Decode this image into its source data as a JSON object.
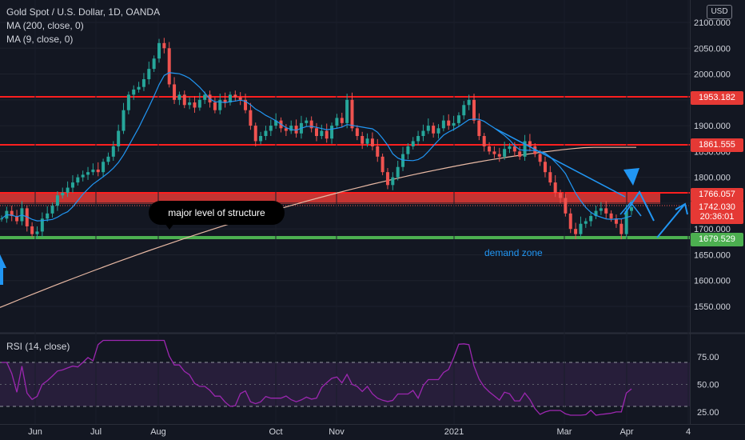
{
  "legend": {
    "title": "Gold Spot / U.S. Dollar, 1D, OANDA",
    "ma200": "MA (200, close, 0)",
    "ma9": "MA (9, close, 0)"
  },
  "currency_button": "USD",
  "price_tags": [
    {
      "label": "1953.182",
      "value": 1953.182,
      "color": "#e53935"
    },
    {
      "label": "1861.555",
      "value": 1861.555,
      "color": "#e53935"
    },
    {
      "label": "1766.057",
      "value": 1766.057,
      "color": "#e53935"
    },
    {
      "label": "1742.030",
      "value": 1742.03,
      "color": "#e53935"
    },
    {
      "label": "20:36:01",
      "value": 1722.0,
      "color": "#e53935"
    },
    {
      "label": "1679.529",
      "value": 1679.529,
      "color": "#4caf50"
    }
  ],
  "annotations": {
    "callout": "major level of structure",
    "zone_label": "demand zone"
  },
  "rsi_title": "RSI (14, close)",
  "colors": {
    "background": "#131722",
    "up_candle": "#26a69a",
    "down_candle": "#ef5350",
    "resistance": "#ff1f1f",
    "support": "#4caf50",
    "ma9": "#2196f3",
    "ma200": "#e8b9a4",
    "rsi": "#9c27b0",
    "rsi_band": "#2a1f3d"
  },
  "chart_data": [
    {
      "type": "candlestick",
      "title": "Gold Spot / U.S. Dollar, 1D, OANDA",
      "x_ticks": [
        "Jun",
        "Jul",
        "Aug",
        "Oct",
        "Nov",
        "2021",
        "Mar",
        "Apr",
        "4"
      ],
      "y_ticks": [
        1550,
        1600,
        1650,
        1700,
        1750,
        1800,
        1850,
        1900,
        1950,
        2000,
        2050,
        2100
      ],
      "y_tick_labels": [
        "1550.000",
        "1600.000",
        "1650.000",
        "1700.000",
        "1750.000",
        "1800.000",
        "1850.000",
        "1900.000",
        "1950.000",
        "2000.000",
        "2050.000",
        "2100.000"
      ],
      "ylim": [
        1510,
        2110
      ],
      "approx_close": [
        1720,
        1735,
        1725,
        1715,
        1740,
        1705,
        1690,
        1695,
        1720,
        1730,
        1745,
        1765,
        1770,
        1780,
        1790,
        1800,
        1805,
        1810,
        1815,
        1810,
        1830,
        1840,
        1860,
        1890,
        1930,
        1960,
        1970,
        1975,
        1990,
        2010,
        2030,
        2060,
        2050,
        1980,
        1950,
        1960,
        1940,
        1945,
        1935,
        1950,
        1960,
        1945,
        1930,
        1950,
        1945,
        1960,
        1955,
        1950,
        1930,
        1900,
        1870,
        1880,
        1890,
        1900,
        1910,
        1895,
        1890,
        1900,
        1885,
        1905,
        1910,
        1895,
        1880,
        1890,
        1875,
        1900,
        1915,
        1905,
        1950,
        1895,
        1880,
        1865,
        1875,
        1860,
        1840,
        1810,
        1785,
        1800,
        1820,
        1845,
        1860,
        1870,
        1880,
        1890,
        1900,
        1885,
        1895,
        1910,
        1900,
        1905,
        1920,
        1940,
        1950,
        1910,
        1880,
        1860,
        1850,
        1845,
        1840,
        1855,
        1860,
        1850,
        1840,
        1870,
        1860,
        1845,
        1830,
        1810,
        1790,
        1770,
        1760,
        1730,
        1700,
        1690,
        1710,
        1715,
        1725,
        1735,
        1740,
        1730,
        1720,
        1710,
        1690,
        1735,
        1742
      ]
    },
    {
      "type": "line",
      "title": "RSI (14, close)",
      "y_ticks": [
        25,
        50,
        75
      ],
      "y_tick_labels": [
        "25.00",
        "50.00",
        "75.00"
      ],
      "bands": [
        30,
        70
      ],
      "ylim": [
        18,
        95
      ]
    }
  ]
}
